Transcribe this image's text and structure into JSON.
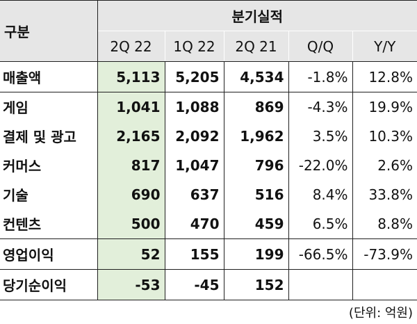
{
  "table": {
    "corner_label": "구분",
    "group_header": "분기실적",
    "columns": [
      "2Q 22",
      "1Q 22",
      "2Q 21",
      "Q/Q",
      "Y/Y"
    ],
    "rows": [
      {
        "label": "매출액",
        "cells": [
          "5,113",
          "5,205",
          "4,534",
          "-1.8%",
          "12.8%"
        ]
      },
      {
        "label": "게임",
        "cells": [
          "1,041",
          "1,088",
          "869",
          "-4.3%",
          "19.9%"
        ]
      },
      {
        "label": "결제 및 광고",
        "cells": [
          "2,165",
          "2,092",
          "1,962",
          "3.5%",
          "10.3%"
        ]
      },
      {
        "label": "커머스",
        "cells": [
          "817",
          "1,047",
          "796",
          "-22.0%",
          "2.6%"
        ]
      },
      {
        "label": "기술",
        "cells": [
          "690",
          "637",
          "516",
          "8.4%",
          "33.8%"
        ]
      },
      {
        "label": "컨텐츠",
        "cells": [
          "500",
          "470",
          "459",
          "6.5%",
          "8.8%"
        ]
      },
      {
        "label": "영업이익",
        "cells": [
          "52",
          "155",
          "199",
          "-66.5%",
          "-73.9%"
        ]
      },
      {
        "label": "당기순이익",
        "cells": [
          "-53",
          "-45",
          "152",
          "",
          ""
        ]
      }
    ],
    "highlight_color": "#e2efda",
    "header_color": "#e6e6e6"
  },
  "footnote": "(단위: 억원)"
}
